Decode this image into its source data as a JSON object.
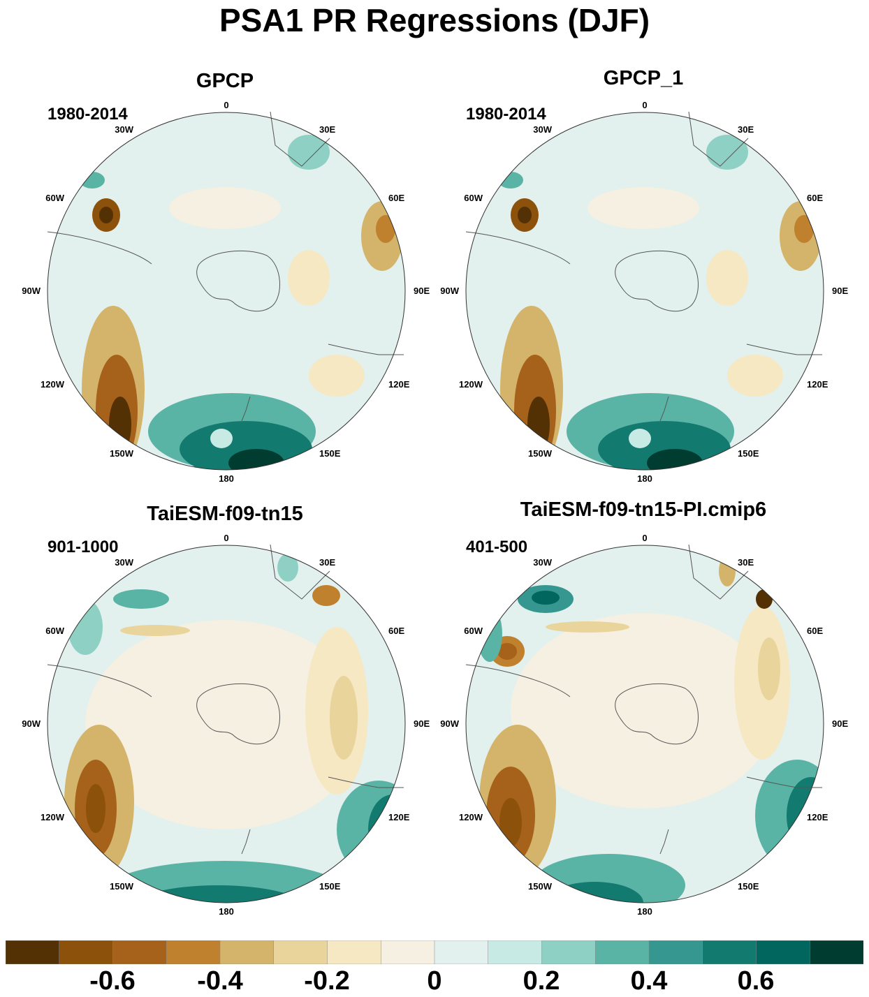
{
  "title": "PSA1 PR Regressions (DJF)",
  "panels": [
    {
      "title": "GPCP",
      "period": "1980-2014"
    },
    {
      "title": "GPCP_1",
      "period": "1980-2014"
    },
    {
      "title": "TaiESM-f09-tn15",
      "period": "901-1000"
    },
    {
      "title": "TaiESM-f09-tn15-PI.cmip6",
      "period": "401-500"
    }
  ],
  "longitude_labels": [
    "0",
    "30E",
    "60E",
    "90E",
    "120E",
    "150E",
    "180",
    "150W",
    "120W",
    "90W",
    "60W",
    "30W"
  ],
  "colorbar": {
    "colors": [
      "#543005",
      "#8c510a",
      "#a6611a",
      "#bf812d",
      "#d4b46a",
      "#e9d49c",
      "#f6e8c3",
      "#f5f0e1",
      "#e2f0ee",
      "#c7eae5",
      "#8fd0c4",
      "#5ab4a6",
      "#35978f",
      "#137a70",
      "#01665e",
      "#003c30"
    ],
    "tick_labels": [
      "-0.6",
      "-0.4",
      "-0.2",
      "0",
      "0.2",
      "0.4",
      "0.6"
    ]
  },
  "colors": {
    "coast": "#555555",
    "circle": "#333333"
  }
}
